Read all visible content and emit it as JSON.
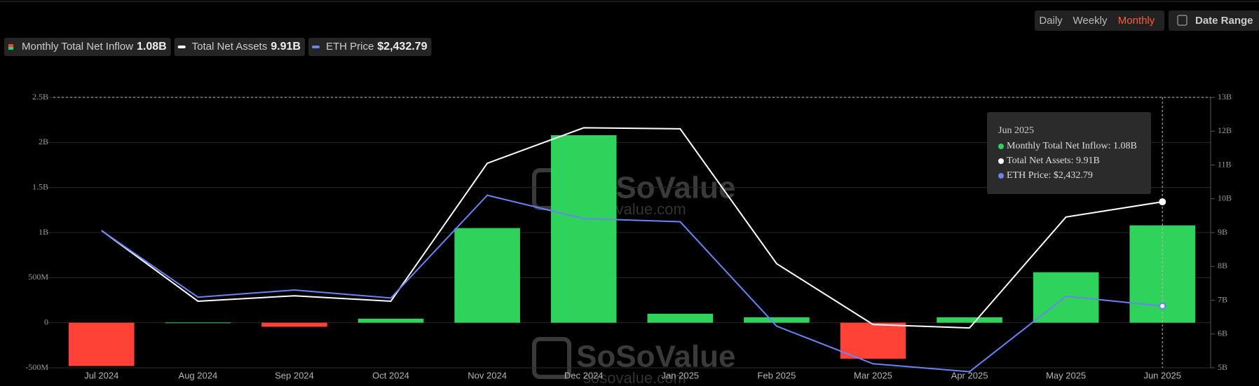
{
  "controls": {
    "periods": [
      "Daily",
      "Weekly",
      "Monthly"
    ],
    "active_period": 2,
    "date_range": "Date Range"
  },
  "tooltip": {
    "title": "Jun 2025",
    "lines": [
      "Monthly Total Net Inflow: 1.08B",
      "Total Net Assets: 9.91B",
      "ETH Price: $2,432.79"
    ]
  },
  "watermark": {
    "brand": "SoSoValue",
    "site": "sosovalue.com"
  },
  "chart_data": {
    "type": "combo",
    "categories": [
      "Jul 2024",
      "Aug 2024",
      "Sep 2024",
      "Oct 2024",
      "Nov 2024",
      "Dec 2024",
      "Jan 2025",
      "Feb 2025",
      "Mar 2025",
      "Apr 2025",
      "May 2025",
      "Jun 2025"
    ],
    "series": [
      {
        "name": "Monthly Total Net Inflow",
        "type": "bar",
        "axis": "y",
        "color": "#2fd25b",
        "negative_color": "#ff4136",
        "current_label": "1.08B",
        "values": [
          -0.48,
          0.003,
          -0.045,
          0.045,
          1.05,
          2.08,
          0.1,
          0.06,
          -0.4,
          0.06,
          0.56,
          1.08
        ]
      },
      {
        "name": "Total Net Assets",
        "type": "line",
        "axis": "y2",
        "color": "#ffffff",
        "current_label": "9.91B",
        "values": [
          9.06,
          6.97,
          7.13,
          6.97,
          11.05,
          12.1,
          12.07,
          8.08,
          6.28,
          6.18,
          9.46,
          9.91
        ]
      },
      {
        "name": "ETH Price",
        "type": "line",
        "axis": "y3",
        "color": "#6b84f5",
        "current_label": "$2,432.79",
        "values": [
          3168,
          2519,
          2589,
          2511,
          3512,
          3285,
          3254,
          2237,
          1870,
          1793,
          2528,
          2432.79
        ]
      }
    ],
    "ylim": [
      -0.5,
      2.5
    ],
    "yticks": [
      {
        "value": -0.5,
        "label": "-500M"
      },
      0,
      {
        "value": 0.5,
        "label": "500M"
      },
      {
        "value": 1,
        "label": "1B"
      },
      {
        "value": 1.5,
        "label": "1.5B"
      },
      {
        "value": 2,
        "label": "2B"
      },
      {
        "value": 2.5,
        "label": "2.5B"
      }
    ],
    "y2lim": [
      5,
      13
    ],
    "y2ticks": [
      {
        "value": 5,
        "label": "5B"
      },
      {
        "value": 6,
        "label": "6B"
      },
      {
        "value": 7,
        "label": "7B"
      },
      {
        "value": 8,
        "label": "8B"
      },
      {
        "value": 9,
        "label": "9B"
      },
      {
        "value": 10,
        "label": "10B"
      },
      {
        "value": 11,
        "label": "11B"
      },
      {
        "value": 12,
        "label": "12B"
      },
      {
        "value": 13,
        "label": "13B"
      }
    ],
    "y3lim": [
      1831,
      4466
    ],
    "grid": true
  }
}
